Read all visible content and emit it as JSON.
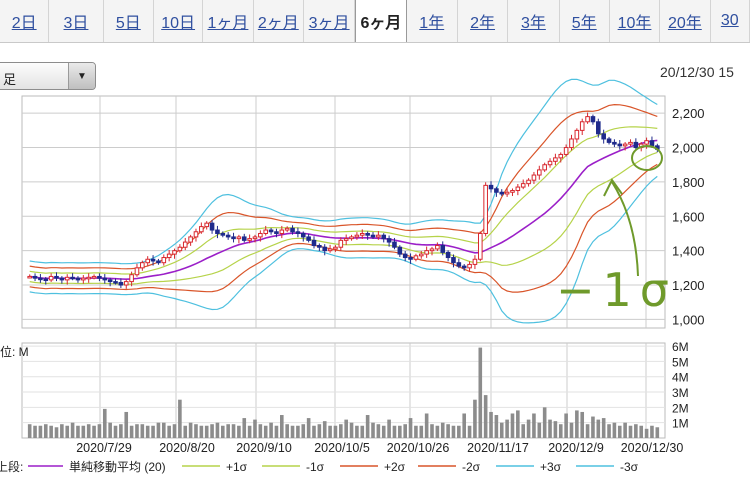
{
  "period_tabs": [
    {
      "label": "2日",
      "x": 0,
      "w": 50
    },
    {
      "label": "3日",
      "x": 50,
      "w": 55
    },
    {
      "label": "5日",
      "x": 105,
      "w": 51
    },
    {
      "label": "10日",
      "x": 156,
      "w": 50
    },
    {
      "label": "1ヶ月",
      "x": 206,
      "w": 51
    },
    {
      "label": "2ヶ月",
      "x": 257,
      "w": 51
    },
    {
      "label": "3ヶ月",
      "x": 308,
      "w": 52
    },
    {
      "label": "6ヶ月",
      "x": 360,
      "w": 52,
      "active": true
    },
    {
      "label": "1年",
      "x": 412,
      "w": 52
    },
    {
      "label": "2年",
      "x": 464,
      "w": 51
    },
    {
      "label": "3年",
      "x": 515,
      "w": 52
    },
    {
      "label": "5年",
      "x": 567,
      "w": 51
    },
    {
      "label": "10年",
      "x": 618,
      "w": 51
    },
    {
      "label": "20年",
      "x": 669,
      "w": 51
    },
    {
      "label": "30",
      "x": 720,
      "w": 40
    }
  ],
  "dropdown": {
    "value": "足"
  },
  "timestamp": "20/12/30 15",
  "volume_unit": "位: M",
  "legend_prefix": "上段:",
  "legend": [
    {
      "label": "単純移動平均 (20)",
      "color": "#9b1fc8"
    },
    {
      "label": "+1σ",
      "color": "#b6d34a"
    },
    {
      "label": "-1σ",
      "color": "#b6d34a"
    },
    {
      "label": "+2σ",
      "color": "#d9552a"
    },
    {
      "label": "-2σ",
      "color": "#d9552a"
    },
    {
      "label": "+3σ",
      "color": "#4ec0df"
    },
    {
      "label": "-3σ",
      "color": "#4ec0df"
    }
  ],
  "annotation": {
    "text": "−1σ",
    "color": "#6f9a2b"
  },
  "colors": {
    "up": "#d8272e",
    "down": "#1f2a8c",
    "grid": "#cccccc",
    "volume": "#8c8c8c"
  },
  "chart_data": {
    "type": "candlestick",
    "x_tick_labels": [
      "2020/7/29",
      "2020/8/20",
      "2020/9/10",
      "2020/10/5",
      "2020/10/26",
      "2020/11/17",
      "2020/12/9",
      "2020/12/30"
    ],
    "y_ticks": [
      1000,
      1200,
      1400,
      1600,
      1800,
      2000,
      2200
    ],
    "ylim": [
      950,
      2300
    ],
    "volume_ticks": [
      {
        "v": 1,
        "label": "1M"
      },
      {
        "v": 2,
        "label": "2M"
      },
      {
        "v": 3,
        "label": "3M"
      },
      {
        "v": 4,
        "label": "4M"
      },
      {
        "v": 5,
        "label": "5M"
      },
      {
        "v": 6,
        "label": "6M"
      }
    ],
    "volume_lim": [
      0,
      6.2
    ],
    "close_path": [
      1250,
      1240,
      1235,
      1230,
      1250,
      1240,
      1230,
      1245,
      1240,
      1230,
      1240,
      1245,
      1250,
      1240,
      1230,
      1220,
      1215,
      1200,
      1220,
      1260,
      1300,
      1330,
      1350,
      1340,
      1330,
      1360,
      1380,
      1400,
      1420,
      1450,
      1480,
      1510,
      1540,
      1560,
      1520,
      1500,
      1490,
      1480,
      1470,
      1480,
      1460,
      1470,
      1480,
      1500,
      1520,
      1510,
      1500,
      1520,
      1530,
      1510,
      1500,
      1480,
      1460,
      1430,
      1420,
      1400,
      1410,
      1420,
      1460,
      1470,
      1480,
      1490,
      1500,
      1490,
      1480,
      1490,
      1470,
      1450,
      1420,
      1380,
      1360,
      1350,
      1370,
      1380,
      1400,
      1410,
      1430,
      1390,
      1360,
      1330,
      1310,
      1300,
      1320,
      1350,
      1500,
      1780,
      1760,
      1740,
      1730,
      1740,
      1750,
      1770,
      1790,
      1810,
      1840,
      1870,
      1900,
      1920,
      1940,
      1960,
      2000,
      2050,
      2100,
      2150,
      2180,
      2150,
      2080,
      2050,
      2030,
      2020,
      2010,
      2020,
      2030,
      2000,
      2020,
      2040,
      2010,
      1990
    ],
    "volume": [
      0.9,
      0.8,
      0.8,
      0.9,
      0.8,
      0.7,
      0.9,
      0.8,
      1.0,
      0.8,
      0.8,
      0.9,
      0.8,
      0.9,
      1.9,
      1.0,
      0.8,
      0.9,
      1.7,
      0.8,
      0.9,
      0.9,
      0.8,
      0.8,
      1.0,
      1.0,
      0.8,
      0.9,
      2.5,
      0.8,
      1.0,
      0.9,
      0.8,
      0.8,
      0.9,
      1.0,
      0.8,
      0.9,
      0.9,
      0.8,
      1.3,
      0.8,
      1.2,
      0.9,
      0.8,
      1.0,
      0.8,
      1.5,
      0.9,
      0.8,
      0.8,
      0.9,
      1.3,
      0.8,
      0.9,
      1.1,
      0.8,
      0.8,
      0.9,
      1.2,
      1.0,
      0.8,
      0.8,
      1.5,
      1.0,
      0.9,
      0.8,
      1.2,
      0.8,
      0.8,
      0.9,
      1.3,
      0.8,
      0.8,
      1.6,
      0.9,
      0.8,
      1.0,
      0.9,
      0.8,
      0.8,
      1.6,
      0.8,
      2.5,
      5.9,
      2.8,
      1.7,
      1.5,
      1.0,
      1.2,
      1.6,
      1.8,
      0.9,
      1.2,
      1.6,
      1.0,
      2.0,
      1.2,
      1.1,
      0.9,
      1.6,
      1.0,
      1.8,
      1.7,
      0.9,
      1.4,
      1.2,
      1.3,
      0.9,
      1.0,
      0.8,
      1.0,
      0.8,
      0.9,
      0.8,
      0.6,
      0.8,
      0.7
    ]
  }
}
